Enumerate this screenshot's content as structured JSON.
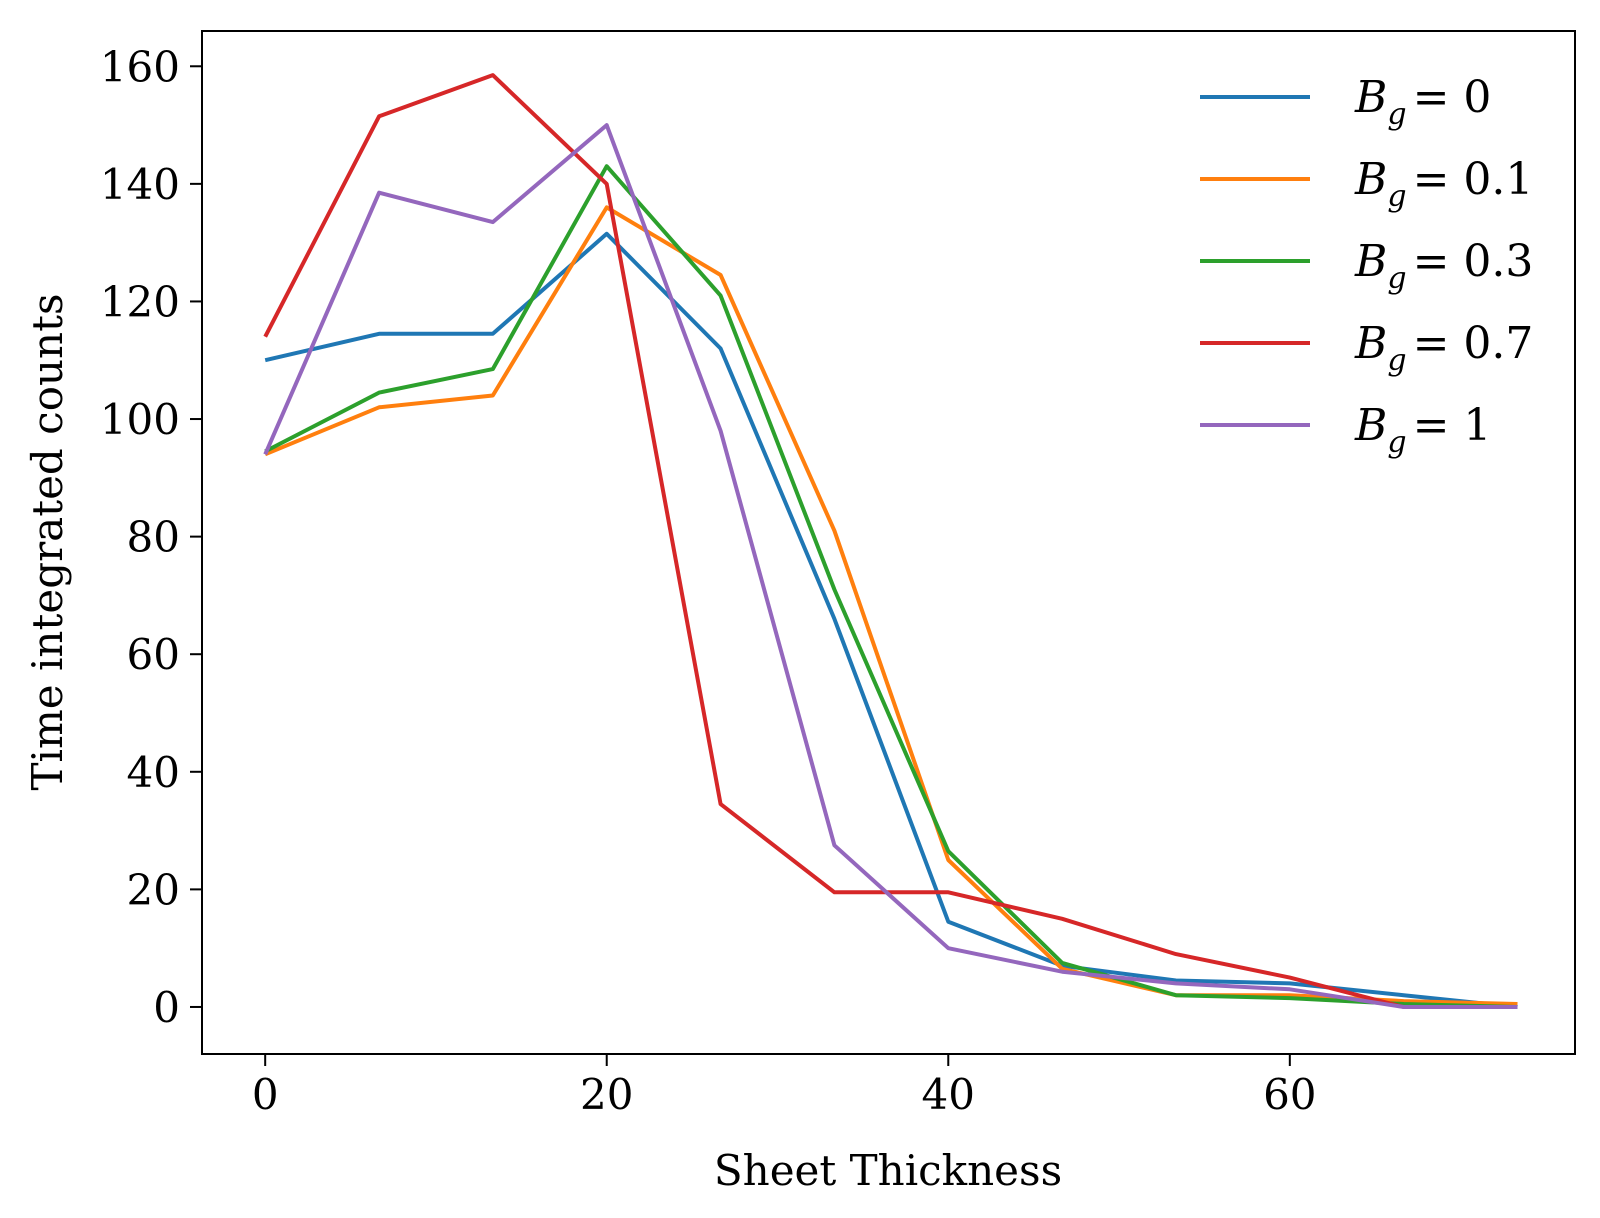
{
  "chart_data": {
    "type": "line",
    "xlabel": "Sheet Thickness",
    "ylabel": "Time integrated counts",
    "xlim": [
      -3.7,
      76.7
    ],
    "ylim": [
      -8,
      166
    ],
    "xticks": [
      0,
      20,
      40,
      60
    ],
    "yticks": [
      0,
      20,
      40,
      60,
      80,
      100,
      120,
      140,
      160
    ],
    "grid": false,
    "legend_position": "top-right",
    "x": [
      0,
      6.67,
      13.33,
      20,
      26.67,
      33.33,
      40,
      46.67,
      53.33,
      60,
      66.67,
      73.33
    ],
    "series": [
      {
        "name_var": "B",
        "name_sub": "g",
        "name_rest": "= 0",
        "color": "#1f77b4",
        "values": [
          110,
          114.5,
          114.5,
          131.5,
          112,
          66,
          14.5,
          7,
          4.5,
          4,
          2,
          0
        ]
      },
      {
        "name_var": "B",
        "name_sub": "g",
        "name_rest": "= 0.1",
        "color": "#ff7f0e",
        "values": [
          94,
          102,
          104,
          136,
          124.5,
          81,
          25,
          6.5,
          2,
          2,
          1,
          0.5
        ]
      },
      {
        "name_var": "B",
        "name_sub": "g",
        "name_rest": "= 0.3",
        "color": "#2ca02c",
        "values": [
          94.5,
          104.5,
          108.5,
          143,
          121,
          71,
          26.5,
          7.5,
          2,
          1.5,
          0.5,
          0
        ]
      },
      {
        "name_var": "B",
        "name_sub": "g",
        "name_rest": "= 0.7",
        "color": "#d62728",
        "values": [
          114,
          151.5,
          158.5,
          140,
          34.5,
          19.5,
          19.5,
          15,
          9,
          5,
          0,
          0
        ]
      },
      {
        "name_var": "B",
        "name_sub": "g",
        "name_rest": "= 1",
        "color": "#9467bd",
        "values": [
          94,
          138.5,
          133.5,
          150,
          98,
          27.5,
          10,
          6,
          4,
          3,
          0,
          0
        ]
      }
    ]
  }
}
